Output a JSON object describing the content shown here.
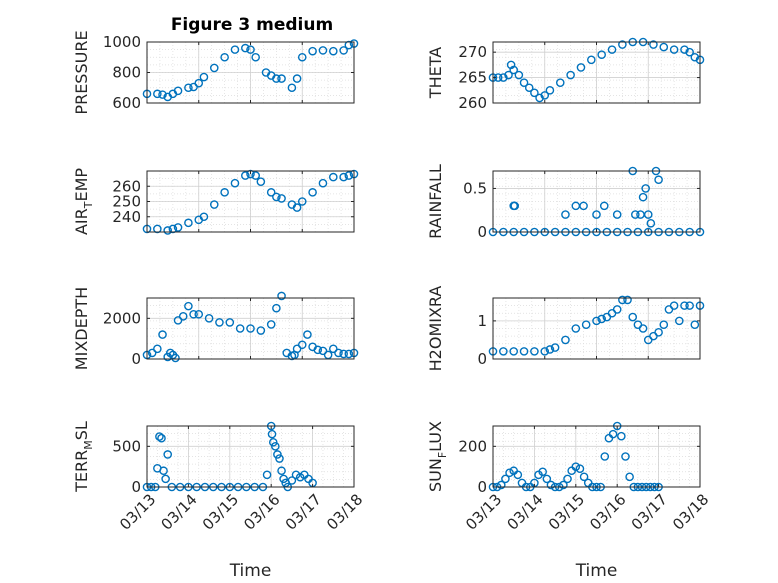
{
  "figure": {
    "title": "Figure 3 medium",
    "xlabel": "Time",
    "marker_color": "#0072BD"
  },
  "chart_data": [
    {
      "type": "scatter",
      "ylabel": "PRESSURE",
      "xlabel": "",
      "title": "Figure 3 medium",
      "xlim": [
        "03/13",
        "03/17"
      ],
      "ylim": [
        600,
        1000
      ],
      "yticks": [
        600,
        800,
        1000
      ],
      "xticks": [
        "03/13",
        "03/14",
        "03/15",
        "03/16",
        "03/17"
      ],
      "show_xtick_labels": false,
      "grid": true,
      "x": [
        0,
        0.2,
        0.3,
        0.4,
        0.5,
        0.6,
        0.8,
        0.9,
        1.0,
        1.1,
        1.3,
        1.5,
        1.7,
        1.9,
        2.0,
        2.1,
        2.3,
        2.4,
        2.5,
        2.6,
        2.8,
        2.9,
        3.0,
        3.2,
        3.4,
        3.6,
        3.8,
        3.9,
        4.0
      ],
      "y": [
        660,
        660,
        655,
        640,
        660,
        680,
        700,
        705,
        730,
        770,
        830,
        900,
        950,
        960,
        950,
        900,
        800,
        780,
        760,
        760,
        700,
        760,
        900,
        940,
        945,
        940,
        945,
        980,
        990
      ]
    },
    {
      "type": "scatter",
      "ylabel": "THETA",
      "xlabel": "",
      "title": "",
      "xlim": [
        "03/13",
        "03/17"
      ],
      "ylim": [
        260,
        272
      ],
      "yticks": [
        260,
        265,
        270
      ],
      "xticks": [
        "03/13",
        "03/14",
        "03/15",
        "03/16",
        "03/17"
      ],
      "show_xtick_labels": false,
      "grid": true,
      "x": [
        0,
        0.1,
        0.2,
        0.3,
        0.35,
        0.4,
        0.5,
        0.6,
        0.7,
        0.8,
        0.9,
        1.0,
        1.1,
        1.3,
        1.5,
        1.7,
        1.9,
        2.1,
        2.3,
        2.5,
        2.7,
        2.9,
        3.1,
        3.3,
        3.5,
        3.7,
        3.8,
        3.9,
        4.0
      ],
      "y": [
        265,
        265,
        265,
        265.5,
        267.5,
        266.5,
        265.5,
        264,
        263,
        262,
        261,
        261.5,
        262.5,
        264,
        265.5,
        267,
        268.5,
        269.5,
        270.5,
        271.5,
        272,
        272,
        271.5,
        271,
        270.5,
        270.5,
        270,
        269,
        268.5
      ]
    },
    {
      "type": "scatter",
      "ylabel": "AIR_TEMP",
      "xlabel": "",
      "title": "",
      "xlim": [
        "03/13",
        "03/17"
      ],
      "ylim": [
        230,
        270
      ],
      "yticks": [
        240,
        250,
        260
      ],
      "xticks": [
        "03/13",
        "03/14",
        "03/15",
        "03/16",
        "03/17"
      ],
      "show_xtick_labels": false,
      "grid": true,
      "x": [
        0,
        0.2,
        0.4,
        0.5,
        0.6,
        0.8,
        1.0,
        1.1,
        1.3,
        1.5,
        1.7,
        1.9,
        2.0,
        2.1,
        2.2,
        2.4,
        2.5,
        2.6,
        2.8,
        2.9,
        3.0,
        3.2,
        3.4,
        3.6,
        3.8,
        3.9,
        4.0
      ],
      "y": [
        232,
        232,
        231,
        232,
        233,
        236,
        238,
        240,
        248,
        256,
        262,
        267,
        268,
        267,
        263,
        256,
        253,
        252,
        248,
        246,
        250,
        256,
        262,
        266,
        266,
        267,
        268
      ]
    },
    {
      "type": "scatter",
      "ylabel": "RAINFALL",
      "xlabel": "",
      "title": "",
      "xlim": [
        "03/13",
        "03/17"
      ],
      "ylim": [
        0,
        0.7
      ],
      "yticks": [
        0,
        0.5
      ],
      "xticks": [
        "03/13",
        "03/14",
        "03/15",
        "03/16",
        "03/17"
      ],
      "show_xtick_labels": false,
      "grid": true,
      "x": [
        0,
        0.2,
        0.4,
        0.6,
        0.8,
        1.0,
        1.2,
        1.4,
        1.6,
        1.8,
        2.0,
        2.2,
        2.4,
        2.6,
        2.8,
        3.0,
        3.2,
        3.4,
        3.6,
        3.8,
        4.0,
        0.4,
        0.42,
        1.4,
        1.6,
        1.75,
        2.0,
        2.15,
        2.4,
        2.7,
        2.75,
        2.85,
        2.9,
        2.95,
        3.0,
        3.05,
        3.15,
        3.2
      ],
      "y": [
        0,
        0,
        0,
        0,
        0,
        0,
        0,
        0,
        0,
        0,
        0,
        0,
        0,
        0,
        0,
        0,
        0,
        0,
        0,
        0,
        0,
        0.3,
        0.3,
        0.2,
        0.3,
        0.3,
        0.2,
        0.3,
        0.2,
        0.7,
        0.2,
        0.2,
        0.4,
        0.5,
        0.2,
        0.1,
        0.7,
        0.6
      ]
    },
    {
      "type": "scatter",
      "ylabel": "MIXDEPTH",
      "xlabel": "",
      "title": "",
      "xlim": [
        "03/13",
        "03/17"
      ],
      "ylim": [
        0,
        3000
      ],
      "yticks": [
        0,
        2000
      ],
      "xticks": [
        "03/13",
        "03/14",
        "03/15",
        "03/16",
        "03/17"
      ],
      "show_xtick_labels": false,
      "grid": true,
      "x": [
        0,
        0.1,
        0.2,
        0.3,
        0.4,
        0.45,
        0.5,
        0.55,
        0.6,
        0.7,
        0.8,
        0.9,
        1.0,
        1.2,
        1.4,
        1.6,
        1.8,
        2.0,
        2.2,
        2.4,
        2.5,
        2.6,
        2.7,
        2.8,
        2.85,
        2.9,
        3.0,
        3.1,
        3.2,
        3.3,
        3.4,
        3.5,
        3.6,
        3.7,
        3.8,
        3.9,
        4.0
      ],
      "y": [
        200,
        300,
        500,
        1200,
        100,
        300,
        200,
        50,
        1900,
        2100,
        2600,
        2200,
        2200,
        2000,
        1800,
        1800,
        1500,
        1500,
        1400,
        1700,
        2500,
        3100,
        300,
        150,
        200,
        500,
        700,
        1200,
        600,
        450,
        400,
        200,
        500,
        300,
        250,
        250,
        300
      ]
    },
    {
      "type": "scatter",
      "ylabel": "H2OMIXRA",
      "xlabel": "",
      "title": "",
      "xlim": [
        "03/13",
        "03/17"
      ],
      "ylim": [
        0,
        1.6
      ],
      "yticks": [
        0,
        1
      ],
      "xticks": [
        "03/13",
        "03/14",
        "03/15",
        "03/16",
        "03/17"
      ],
      "show_xtick_labels": false,
      "grid": true,
      "x": [
        0,
        0.2,
        0.4,
        0.6,
        0.8,
        1.0,
        1.1,
        1.2,
        1.4,
        1.6,
        1.8,
        2.0,
        2.1,
        2.2,
        2.3,
        2.4,
        2.5,
        2.6,
        2.7,
        2.8,
        2.9,
        3.0,
        3.1,
        3.2,
        3.3,
        3.4,
        3.5,
        3.6,
        3.7,
        3.8,
        3.9,
        4.0
      ],
      "y": [
        0.2,
        0.2,
        0.2,
        0.2,
        0.2,
        0.2,
        0.25,
        0.3,
        0.5,
        0.8,
        0.9,
        1.0,
        1.05,
        1.1,
        1.2,
        1.3,
        1.55,
        1.55,
        1.1,
        0.9,
        0.8,
        0.5,
        0.6,
        0.7,
        0.9,
        1.3,
        1.4,
        1.0,
        1.4,
        1.4,
        0.9,
        1.4
      ]
    },
    {
      "type": "scatter",
      "ylabel": "TERR_MSL",
      "xlabel": "Time",
      "title": "",
      "xlim": [
        "03/13",
        "03/18"
      ],
      "ylim": [
        0,
        750
      ],
      "yticks": [
        0,
        500
      ],
      "xticks": [
        "03/13",
        "03/14",
        "03/15",
        "03/16",
        "03/17",
        "03/18"
      ],
      "show_xtick_labels": true,
      "grid": true,
      "x": [
        0,
        0.1,
        0.2,
        0.25,
        0.3,
        0.35,
        0.4,
        0.45,
        0.5,
        0.6,
        0.8,
        1.0,
        1.2,
        1.4,
        1.6,
        1.8,
        2.0,
        2.2,
        2.4,
        2.6,
        2.8,
        2.9,
        3.0,
        3.02,
        3.05,
        3.1,
        3.15,
        3.2,
        3.25,
        3.3,
        3.35,
        3.4,
        3.5,
        3.6,
        3.7,
        3.8,
        3.9,
        4.0
      ],
      "y": [
        0,
        0,
        0,
        230,
        620,
        600,
        200,
        100,
        400,
        0,
        0,
        0,
        0,
        0,
        0,
        0,
        0,
        0,
        0,
        0,
        0,
        150,
        750,
        650,
        550,
        500,
        400,
        350,
        200,
        100,
        50,
        0,
        80,
        150,
        120,
        150,
        100,
        50
      ]
    },
    {
      "type": "scatter",
      "ylabel": "SUN_FLUX",
      "xlabel": "Time",
      "title": "",
      "xlim": [
        "03/13",
        "03/18"
      ],
      "ylim": [
        0,
        300
      ],
      "yticks": [
        0,
        200
      ],
      "xticks": [
        "03/13",
        "03/14",
        "03/15",
        "03/16",
        "03/17",
        "03/18"
      ],
      "show_xtick_labels": true,
      "grid": true,
      "x": [
        0,
        0.1,
        0.2,
        0.3,
        0.4,
        0.5,
        0.6,
        0.7,
        0.8,
        0.9,
        1.0,
        1.1,
        1.2,
        1.3,
        1.4,
        1.5,
        1.6,
        1.7,
        1.8,
        1.9,
        2.0,
        2.1,
        2.2,
        2.3,
        2.4,
        2.5,
        2.6,
        2.7,
        2.8,
        2.9,
        3.0,
        3.1,
        3.2,
        3.3,
        3.4,
        3.5,
        3.6,
        3.7,
        3.8,
        3.9,
        4.0
      ],
      "y": [
        0,
        0,
        10,
        40,
        70,
        80,
        60,
        20,
        0,
        0,
        20,
        60,
        75,
        40,
        10,
        0,
        0,
        10,
        40,
        80,
        100,
        90,
        50,
        20,
        0,
        0,
        0,
        150,
        240,
        260,
        300,
        250,
        150,
        50,
        0,
        0,
        0,
        0,
        0,
        0,
        0
      ]
    }
  ]
}
